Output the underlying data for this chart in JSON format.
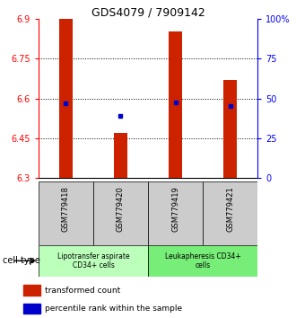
{
  "title": "GDS4079 / 7909142",
  "samples": [
    "GSM779418",
    "GSM779420",
    "GSM779419",
    "GSM779421"
  ],
  "red_values": [
    6.9,
    6.47,
    6.855,
    6.67
  ],
  "blue_values": [
    6.582,
    6.535,
    6.587,
    6.572
  ],
  "ymin": 6.3,
  "ymax": 6.9,
  "yticks_left": [
    6.9,
    6.75,
    6.6,
    6.45,
    6.3
  ],
  "right_pcts": [
    100,
    75,
    50,
    25,
    0
  ],
  "right_labels": [
    "100%",
    "75",
    "50",
    "25",
    "0"
  ],
  "bar_color": "#cc2200",
  "dot_color": "#0000cc",
  "group1_label": "Lipotransfer aspirate\nCD34+ cells",
  "group2_label": "Leukapheresis CD34+\ncells",
  "group1_bg": "#bbffbb",
  "group2_bg": "#77ee77",
  "sample_bg": "#cccccc",
  "legend_red": "transformed count",
  "legend_blue": "percentile rank within the sample",
  "cell_type_label": "cell type",
  "bar_width": 0.25,
  "grid_color": "#555555"
}
